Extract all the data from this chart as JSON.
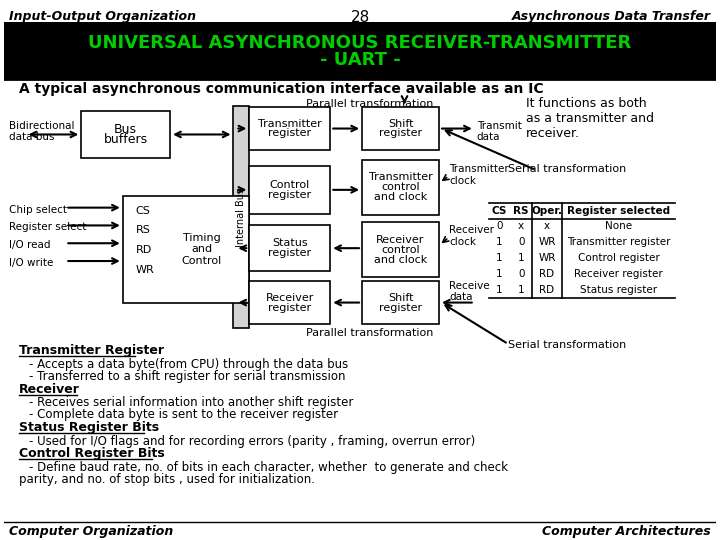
{
  "bg_color": "#ffffff",
  "header_bg": "#000000",
  "header_text_color": "#00cc00",
  "title_line1": "UNIVERSAL ASYNCHRONOUS RECEIVER-TRANSMITTER",
  "title_line2": "- UART -",
  "top_left": "Input-Output Organization",
  "top_center": "28",
  "top_right": "Asynchronous Data Transfer",
  "subtitle": "A typical asynchronous communication interface available as an IC",
  "bottom_left": "Computer Organization",
  "bottom_right": "Computer Architectures",
  "text_color": "#000000"
}
